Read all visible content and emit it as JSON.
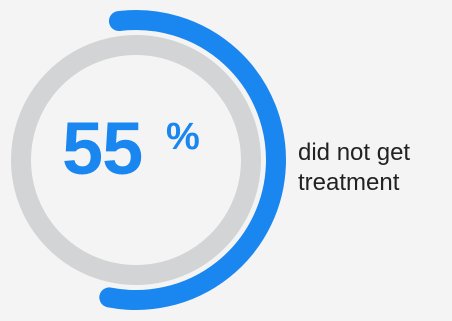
{
  "colors": {
    "accent": "#1a86f0",
    "track": "#d3d4d6",
    "background": "#f4f4f4"
  },
  "chart_data": {
    "type": "pie",
    "style": "donut-progress",
    "value": 55,
    "max": 100,
    "value_label": "55",
    "unit": "%",
    "caption_lines": [
      "did not get",
      "treatment"
    ]
  }
}
